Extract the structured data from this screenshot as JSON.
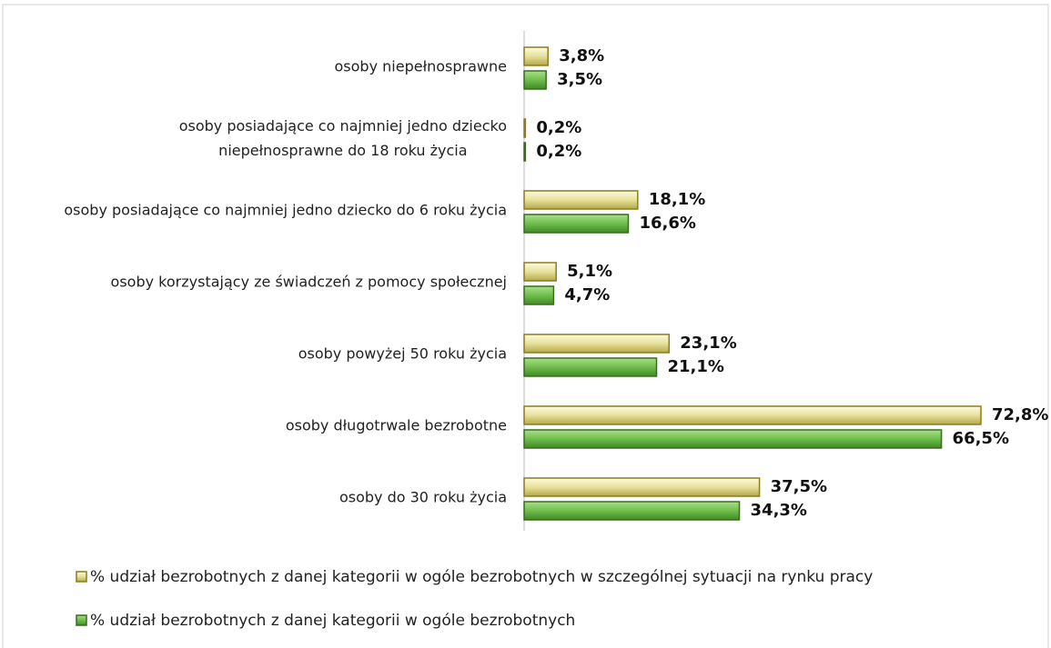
{
  "chart_data": {
    "type": "hbar",
    "categories": [
      "osoby niepełnosprawne",
      "osoby posiadające co najmniej jedno dziecko\nniepełnosprawne do 18 roku życia",
      "osoby posiadające co najmniej jedno dziecko do 6 roku życia",
      "osoby korzystający ze świadczeń z pomocy społecznej",
      "osoby powyżej 50 roku życia",
      "osoby długotrwale bezrobotne",
      "osoby do 30 roku życia"
    ],
    "series": [
      {
        "name": "% udział bezrobotnych z danej kategorii w ogóle bezrobotnych w szczególnej sytuacji na rynku pracy",
        "color": "#e6e09a",
        "edge": "#8c7d1e",
        "values": [
          3.8,
          0.2,
          18.1,
          5.1,
          23.1,
          72.8,
          37.5
        ],
        "value_labels": [
          "3,8%",
          "0,2%",
          "18,1%",
          "5,1%",
          "23,1%",
          "72,8%",
          "37,5%"
        ]
      },
      {
        "name": "% udział bezrobotnych z danej kategorii w ogóle bezrobotnych",
        "color": "#6fbe4c",
        "edge": "#3b6b1d",
        "values": [
          3.5,
          0.2,
          16.6,
          4.7,
          21.1,
          66.5,
          34.3
        ],
        "value_labels": [
          "3,5%",
          "0,2%",
          "16,6%",
          "4,7%",
          "21,1%",
          "66,5%",
          "34,3%"
        ]
      }
    ]
  }
}
